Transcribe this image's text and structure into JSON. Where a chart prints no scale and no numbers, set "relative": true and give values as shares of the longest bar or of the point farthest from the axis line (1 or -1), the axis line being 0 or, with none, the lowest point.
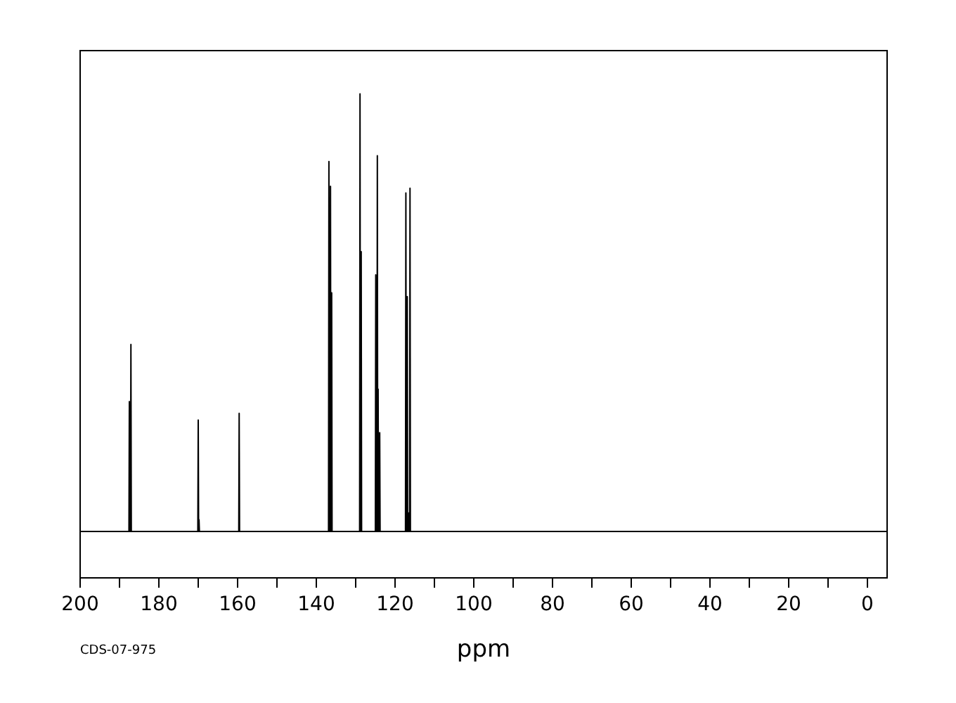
{
  "chart_data": {
    "type": "line",
    "relative": true,
    "xlabel": "ppm",
    "annotations": [
      "CDS-07-975"
    ],
    "xlim": [
      200,
      -5
    ],
    "xticks": [
      200,
      {
        "value": 190,
        "label": null
      },
      180,
      {
        "value": 170,
        "label": null
      },
      160,
      {
        "value": 150,
        "label": null
      },
      140,
      {
        "value": 130,
        "label": null
      },
      120,
      {
        "value": 110,
        "label": null
      },
      100,
      {
        "value": 90,
        "label": null
      },
      80,
      {
        "value": 70,
        "label": null
      },
      60,
      {
        "value": 50,
        "label": null
      },
      40,
      {
        "value": 30,
        "label": null
      },
      20,
      {
        "value": 10,
        "label": null
      },
      0
    ],
    "color": "#000000",
    "x": [
      200,
      187.6,
      187.5,
      187.4,
      187.2,
      187.1,
      187.0,
      170.1,
      170.0,
      169.9,
      169.8,
      169.7,
      159.7,
      159.6,
      159.5,
      136.9,
      136.8,
      136.7,
      136.5,
      136.4,
      136.3,
      136.2,
      136.1,
      136.0,
      129.0,
      128.9,
      128.8,
      128.7,
      128.6,
      128.5,
      125.0,
      124.9,
      124.8,
      124.6,
      124.5,
      124.4,
      124.3,
      124.2,
      124.0,
      123.9,
      123.8,
      117.35,
      117.25,
      117.15,
      117.0,
      116.9,
      116.8,
      116.6,
      116.5,
      116.4,
      116.3,
      116.2,
      116.1,
      -5
    ],
    "values": [
      0.096,
      0.096,
      0.364,
      0.096,
      0.096,
      0.482,
      0.096,
      0.096,
      0.326,
      0.096,
      0.12,
      0.096,
      0.096,
      0.34,
      0.096,
      0.096,
      0.86,
      0.096,
      0.096,
      0.809,
      0.096,
      0.096,
      0.589,
      0.096,
      0.096,
      1,
      0.096,
      0.096,
      0.674,
      0.096,
      0.096,
      0.626,
      0.096,
      0.096,
      0.872,
      0.096,
      0.39,
      0.096,
      0.096,
      0.3,
      0.096,
      0.096,
      0.795,
      0.096,
      0.096,
      0.581,
      0.096,
      0.096,
      0.134,
      0.096,
      0.096,
      0.805,
      0.096,
      0.096
    ]
  }
}
